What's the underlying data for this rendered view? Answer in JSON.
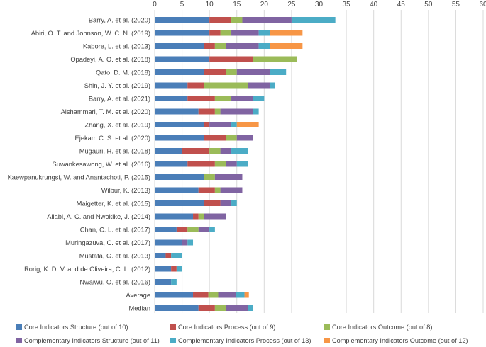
{
  "chart_data": {
    "type": "bar",
    "orientation": "horizontal",
    "stacked": true,
    "title": "",
    "xlabel": "",
    "ylabel": "",
    "xlim": [
      0,
      60
    ],
    "xticks": [
      0,
      5,
      10,
      15,
      20,
      25,
      30,
      35,
      40,
      45,
      50,
      55,
      60
    ],
    "x_axis_position": "top",
    "grid": true,
    "legend_position": "bottom",
    "categories": [
      "Barry, A. et al. (2020)",
      "Abiri, O. T. and Johnson, W. C. N. (2019)",
      "Kabore, L. et al. (2013)",
      "Opadeyi, A. O. et al. (2018)",
      "Qato, D. M. (2018)",
      "Shin, J. Y. et al. (2019)",
      "Barry, A. et al. (2021)",
      "Alshammari, T. M. et al. (2020)",
      "Zhang, X. et al. (2019)",
      "Ejekam C. S. et al. (2020)",
      "Mugauri, H. et al. (2018)",
      "Suwankesawong, W. et al. (2016)",
      "Kaewpanukrungsi, W. and Anantachoti, P. (2015)",
      "Wilbur, K. (2013)",
      "Maigetter, K. et al. (2015)",
      "Allabi, A. C. and Nwokike, J. (2014)",
      "Chan, C. L. et al. (2017)",
      "Muringazuva, C. et al. (2017)",
      "Mustafa, G. et al. (2013)",
      "Rorig, K. D. V. and de Oliveira, C. L. (2012)",
      "Nwaiwu, O. et al. (2016)",
      "Average",
      "Median"
    ],
    "series": [
      {
        "name": "Core Indicators Structure (out of 10)",
        "color": "#4a7eb8",
        "values": [
          10,
          10,
          9,
          10,
          9,
          6,
          6,
          8,
          9,
          9,
          5,
          6,
          9,
          8,
          9,
          7,
          4,
          5,
          2,
          3,
          3,
          7,
          8
        ]
      },
      {
        "name": "Core Indicators Process (out of 9)",
        "color": "#c0504d",
        "values": [
          4,
          2,
          2,
          8,
          4,
          3,
          5,
          3,
          1,
          4,
          5,
          5,
          0,
          3,
          3,
          1,
          2,
          0,
          1,
          1,
          0,
          2.8,
          3
        ]
      },
      {
        "name": "Core Indicators Outcome (out of 8)",
        "color": "#9bbb59",
        "values": [
          2,
          2,
          2,
          8,
          2,
          8,
          3,
          1,
          0,
          2,
          2,
          2,
          2,
          1,
          0,
          1,
          2,
          0,
          0,
          0,
          0,
          1.8,
          2
        ]
      },
      {
        "name": "Complementary Indicators Structure (out of 11)",
        "color": "#8064a2",
        "values": [
          9,
          5,
          6,
          0,
          6,
          4,
          4,
          6,
          4,
          3,
          2,
          2,
          5,
          4,
          2,
          4,
          2,
          1,
          0,
          0,
          0,
          3.3,
          4
        ]
      },
      {
        "name": "Complementary Indicators Process (out of 13)",
        "color": "#4bacc6",
        "values": [
          8,
          2,
          2,
          0,
          3,
          1,
          2,
          1,
          1,
          0,
          3,
          2,
          0,
          0,
          1,
          0,
          1,
          1,
          2,
          1,
          1,
          1.5,
          1
        ]
      },
      {
        "name": "Complementary Indicators Outcome (out of 12)",
        "color": "#f79646",
        "values": [
          0,
          6,
          6,
          0,
          0,
          0,
          0,
          0,
          4,
          0,
          0,
          0,
          0,
          0,
          0,
          0,
          0,
          0,
          0,
          0,
          0,
          0.8,
          0
        ]
      }
    ]
  }
}
